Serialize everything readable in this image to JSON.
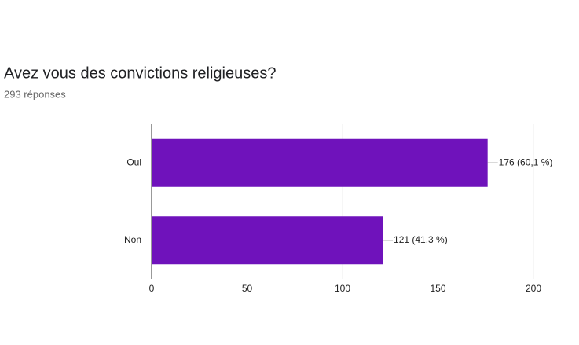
{
  "chart_data": {
    "type": "bar",
    "orientation": "horizontal",
    "title": "Avez vous des convictions religieuses?",
    "subtitle": "293 réponses",
    "categories": [
      "Oui",
      "Non"
    ],
    "values": [
      176,
      121
    ],
    "value_labels": [
      "176 (60,1 %)",
      "121 (41,3 %)"
    ],
    "color": "#6f12bb",
    "xlim": [
      0,
      200
    ],
    "xticks": [
      0,
      50,
      100,
      150,
      200
    ],
    "grid": true
  }
}
